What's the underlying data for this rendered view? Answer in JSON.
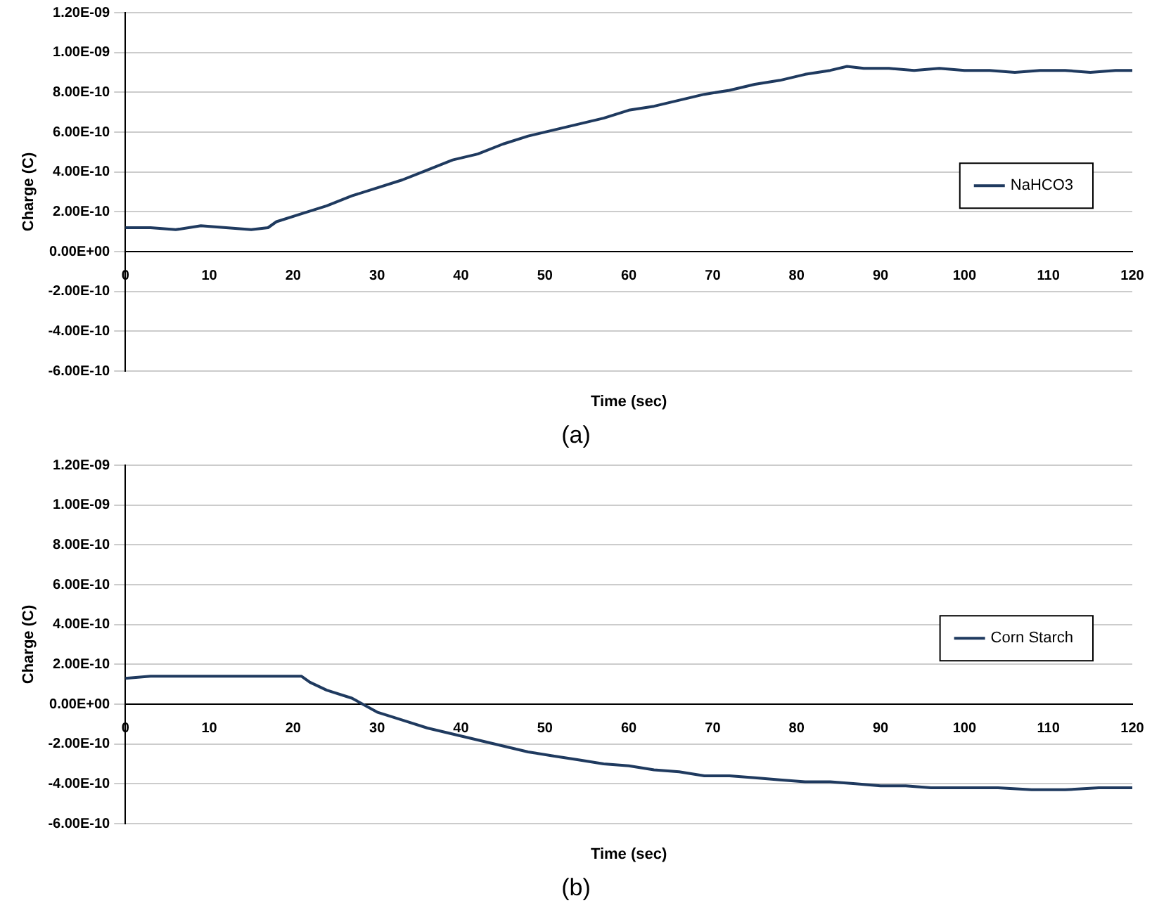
{
  "chart_data": [
    {
      "type": "line",
      "xlabel": "Time (sec)",
      "ylabel": "Charge (C)",
      "annotations": [
        "(a)"
      ],
      "xlim": [
        0,
        120
      ],
      "xticks": [
        0,
        10,
        20,
        30,
        40,
        50,
        60,
        70,
        80,
        90,
        100,
        110,
        120
      ],
      "ylim": [
        -6e-10,
        1.2e-09
      ],
      "yticks": [
        {
          "value": -6e-10,
          "label": "-6.00E-10"
        },
        {
          "value": -4e-10,
          "label": "-4.00E-10"
        },
        {
          "value": -2e-10,
          "label": "-2.00E-10"
        },
        {
          "value": 0,
          "label": "0.00E+00"
        },
        {
          "value": 2e-10,
          "label": "2.00E-10"
        },
        {
          "value": 4e-10,
          "label": "4.00E-10"
        },
        {
          "value": 6e-10,
          "label": "6.00E-10"
        },
        {
          "value": 8e-10,
          "label": "8.00E-10"
        },
        {
          "value": 1e-09,
          "label": "1.00E-09"
        },
        {
          "value": 1.2e-09,
          "label": "1.20E-09"
        }
      ],
      "grid": "y",
      "legend": "right",
      "marker": "none",
      "line_style": "solid",
      "series": [
        {
          "name": "NaHCO3",
          "color": "#1f3a5f",
          "x": [
            0,
            3,
            6,
            9,
            12,
            15,
            17,
            18,
            21,
            24,
            27,
            30,
            33,
            36,
            39,
            42,
            45,
            48,
            51,
            54,
            57,
            60,
            63,
            66,
            69,
            72,
            75,
            78,
            81,
            84,
            86,
            88,
            91,
            94,
            97,
            100,
            103,
            106,
            109,
            112,
            115,
            118,
            120
          ],
          "values": [
            1.2e-10,
            1.2e-10,
            1.1e-10,
            1.3e-10,
            1.2e-10,
            1.1e-10,
            1.2e-10,
            1.5e-10,
            1.9e-10,
            2.3e-10,
            2.8e-10,
            3.2e-10,
            3.6e-10,
            4.1e-10,
            4.6e-10,
            4.9e-10,
            5.4e-10,
            5.8e-10,
            6.1e-10,
            6.4e-10,
            6.7e-10,
            7.1e-10,
            7.3e-10,
            7.6e-10,
            7.9e-10,
            8.1e-10,
            8.4e-10,
            8.6e-10,
            8.9e-10,
            9.1e-10,
            9.3e-10,
            9.2e-10,
            9.2e-10,
            9.1e-10,
            9.2e-10,
            9.1e-10,
            9.1e-10,
            9e-10,
            9.1e-10,
            9.1e-10,
            9e-10,
            9.1e-10,
            9.1e-10
          ]
        }
      ]
    },
    {
      "type": "line",
      "xlabel": "Time (sec)",
      "ylabel": "Charge (C)",
      "annotations": [
        "(b)"
      ],
      "xlim": [
        0,
        120
      ],
      "xticks": [
        0,
        10,
        20,
        30,
        40,
        50,
        60,
        70,
        80,
        90,
        100,
        110,
        120
      ],
      "ylim": [
        -6e-10,
        1.2e-09
      ],
      "yticks": [
        {
          "value": -6e-10,
          "label": "-6.00E-10"
        },
        {
          "value": -4e-10,
          "label": "-4.00E-10"
        },
        {
          "value": -2e-10,
          "label": "-2.00E-10"
        },
        {
          "value": 0,
          "label": "0.00E+00"
        },
        {
          "value": 2e-10,
          "label": "2.00E-10"
        },
        {
          "value": 4e-10,
          "label": "4.00E-10"
        },
        {
          "value": 6e-10,
          "label": "6.00E-10"
        },
        {
          "value": 8e-10,
          "label": "8.00E-10"
        },
        {
          "value": 1e-09,
          "label": "1.00E-09"
        },
        {
          "value": 1.2e-09,
          "label": "1.20E-09"
        }
      ],
      "grid": "y",
      "legend": "right",
      "marker": "none",
      "line_style": "solid",
      "series": [
        {
          "name": "Corn Starch",
          "color": "#1f3a5f",
          "x": [
            0,
            3,
            6,
            9,
            12,
            15,
            18,
            21,
            22,
            24,
            27,
            30,
            33,
            36,
            39,
            42,
            45,
            48,
            51,
            54,
            57,
            60,
            63,
            66,
            69,
            72,
            75,
            78,
            81,
            84,
            87,
            90,
            93,
            96,
            100,
            104,
            108,
            112,
            116,
            120
          ],
          "values": [
            1.3e-10,
            1.4e-10,
            1.4e-10,
            1.4e-10,
            1.4e-10,
            1.4e-10,
            1.4e-10,
            1.4e-10,
            1.1e-10,
            7e-11,
            3e-11,
            -4e-11,
            -8e-11,
            -1.2e-10,
            -1.5e-10,
            -1.8e-10,
            -2.1e-10,
            -2.4e-10,
            -2.6e-10,
            -2.8e-10,
            -3e-10,
            -3.1e-10,
            -3.3e-10,
            -3.4e-10,
            -3.6e-10,
            -3.6e-10,
            -3.7e-10,
            -3.8e-10,
            -3.9e-10,
            -3.9e-10,
            -4e-10,
            -4.1e-10,
            -4.1e-10,
            -4.2e-10,
            -4.2e-10,
            -4.2e-10,
            -4.3e-10,
            -4.3e-10,
            -4.2e-10,
            -4.2e-10
          ]
        }
      ]
    }
  ]
}
